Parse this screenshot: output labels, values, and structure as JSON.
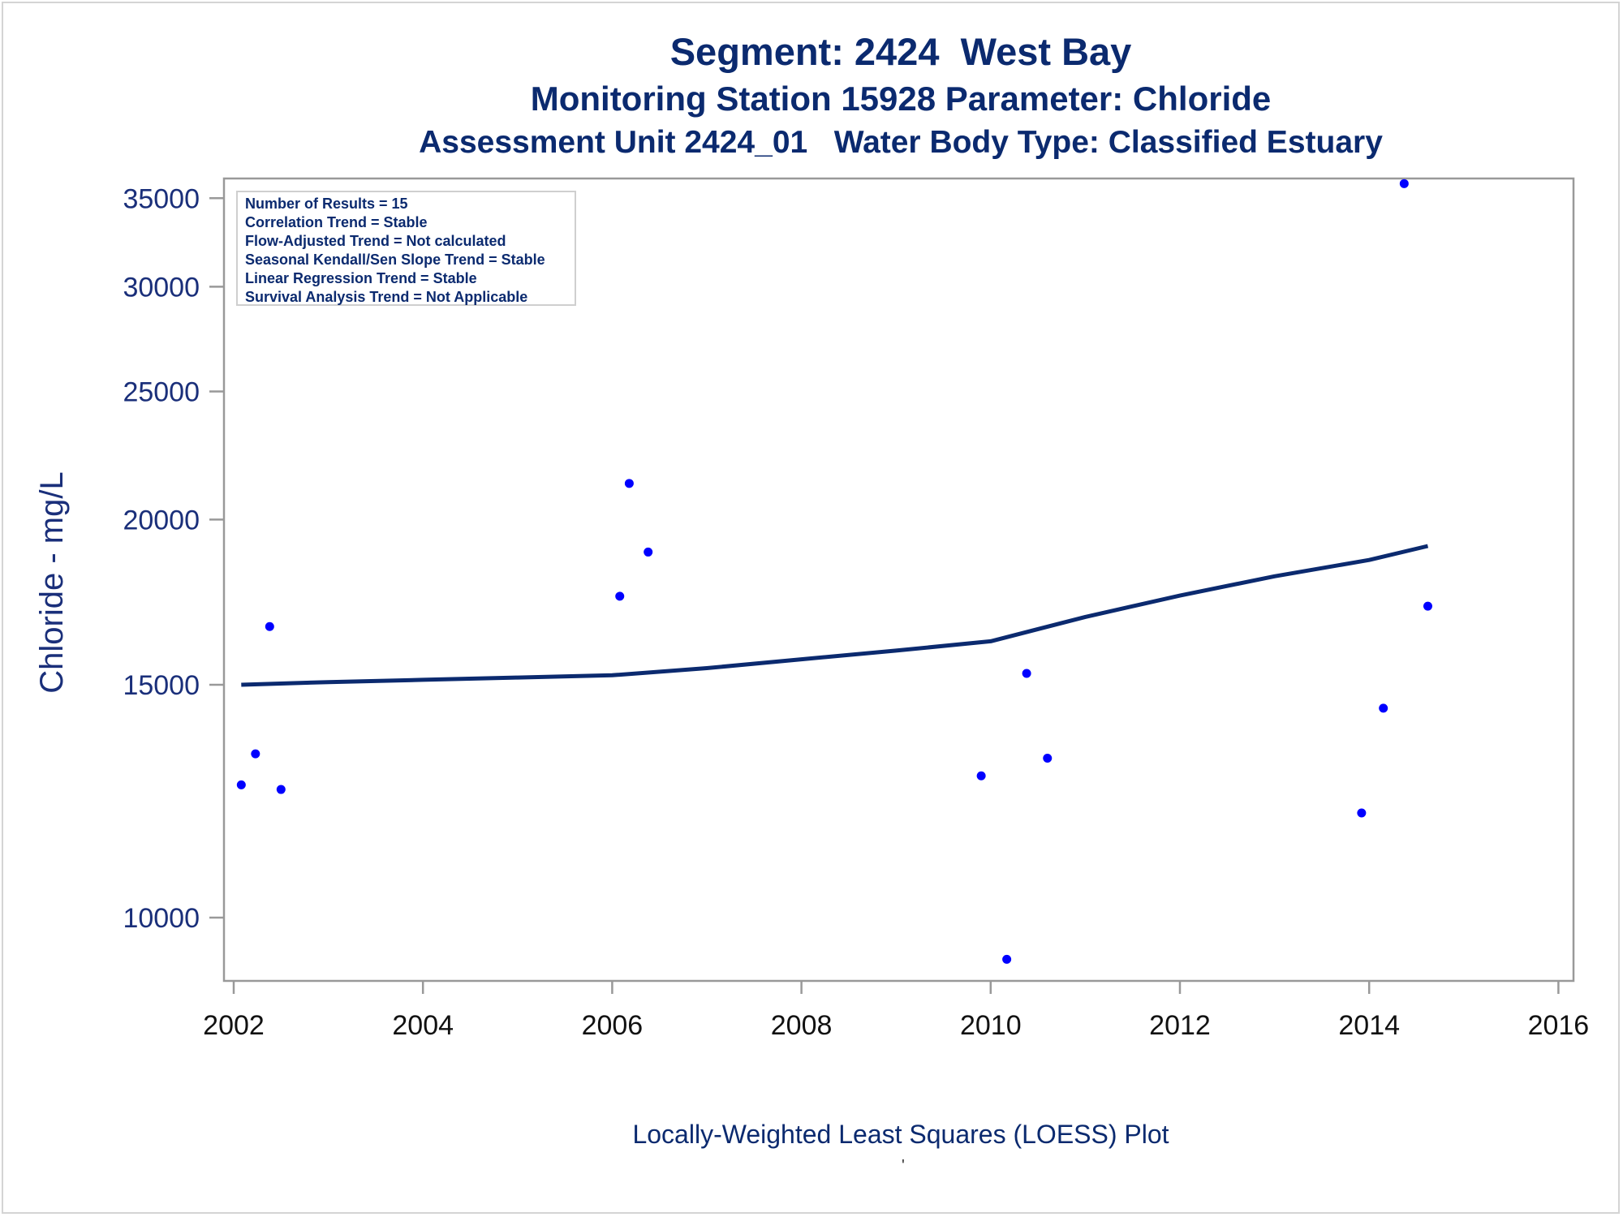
{
  "colors": {
    "title": "#0b2a6f",
    "axis_text": "#1a2f7a",
    "points": "#0000ff",
    "loess_line": "#0b2a6f",
    "frame": "#999999"
  },
  "header": {
    "title": "Segment: 2424  West Bay",
    "subtitle1": "Monitoring Station 15928 Parameter: Chloride",
    "subtitle2": "Assessment Unit 2424_01   Water Body Type: Classified Estuary"
  },
  "stats_box": {
    "lines": [
      "Number of Results = 15",
      "Correlation Trend = Stable",
      "Flow-Adjusted Trend = Not calculated",
      "Seasonal Kendall/Sen Slope Trend = Stable",
      "Linear Regression Trend = Stable",
      "Survival Analysis Trend = Not Applicable"
    ]
  },
  "footnote": "Locally-Weighted Least Squares (LOESS) Plot",
  "footnote_mark": "'",
  "chart_data": {
    "type": "scatter",
    "scale_y": "log",
    "xlabel": "",
    "ylabel": "Chloride - mg/L",
    "xlim": [
      2001.9,
      2016.2
    ],
    "ylim": [
      9300,
      37500
    ],
    "x_ticks": [
      2002,
      2004,
      2006,
      2008,
      2010,
      2012,
      2014,
      2016
    ],
    "x_tick_labels": [
      "2002",
      "2004",
      "2006",
      "2008",
      "2010",
      "2012",
      "2014",
      "2016"
    ],
    "y_ticks": [
      10000,
      15000,
      20000,
      25000,
      30000,
      35000
    ],
    "y_tick_labels": [
      "10000",
      "15000",
      "20000",
      "25000",
      "30000",
      "35000"
    ],
    "grid": false,
    "series": [
      {
        "type": "scatter",
        "x": [
          2002.08,
          2002.23,
          2002.38,
          2002.5,
          2006.08,
          2006.18,
          2006.38,
          2009.9,
          2010.17,
          2010.38,
          2010.6,
          2013.92,
          2014.15,
          2014.37,
          2014.62
        ],
        "y": [
          12600,
          13300,
          16600,
          12500,
          17500,
          21300,
          18900,
          12800,
          9300,
          15300,
          13200,
          12000,
          14400,
          35900,
          17200
        ]
      },
      {
        "type": "line",
        "x": [
          2002.08,
          2003,
          2004,
          2005,
          2006,
          2007,
          2008,
          2009,
          2010,
          2011,
          2012,
          2013,
          2014,
          2014.62
        ],
        "y": [
          15000,
          15070,
          15130,
          15190,
          15250,
          15440,
          15680,
          15920,
          16180,
          16880,
          17520,
          18120,
          18640,
          19100
        ]
      }
    ]
  }
}
